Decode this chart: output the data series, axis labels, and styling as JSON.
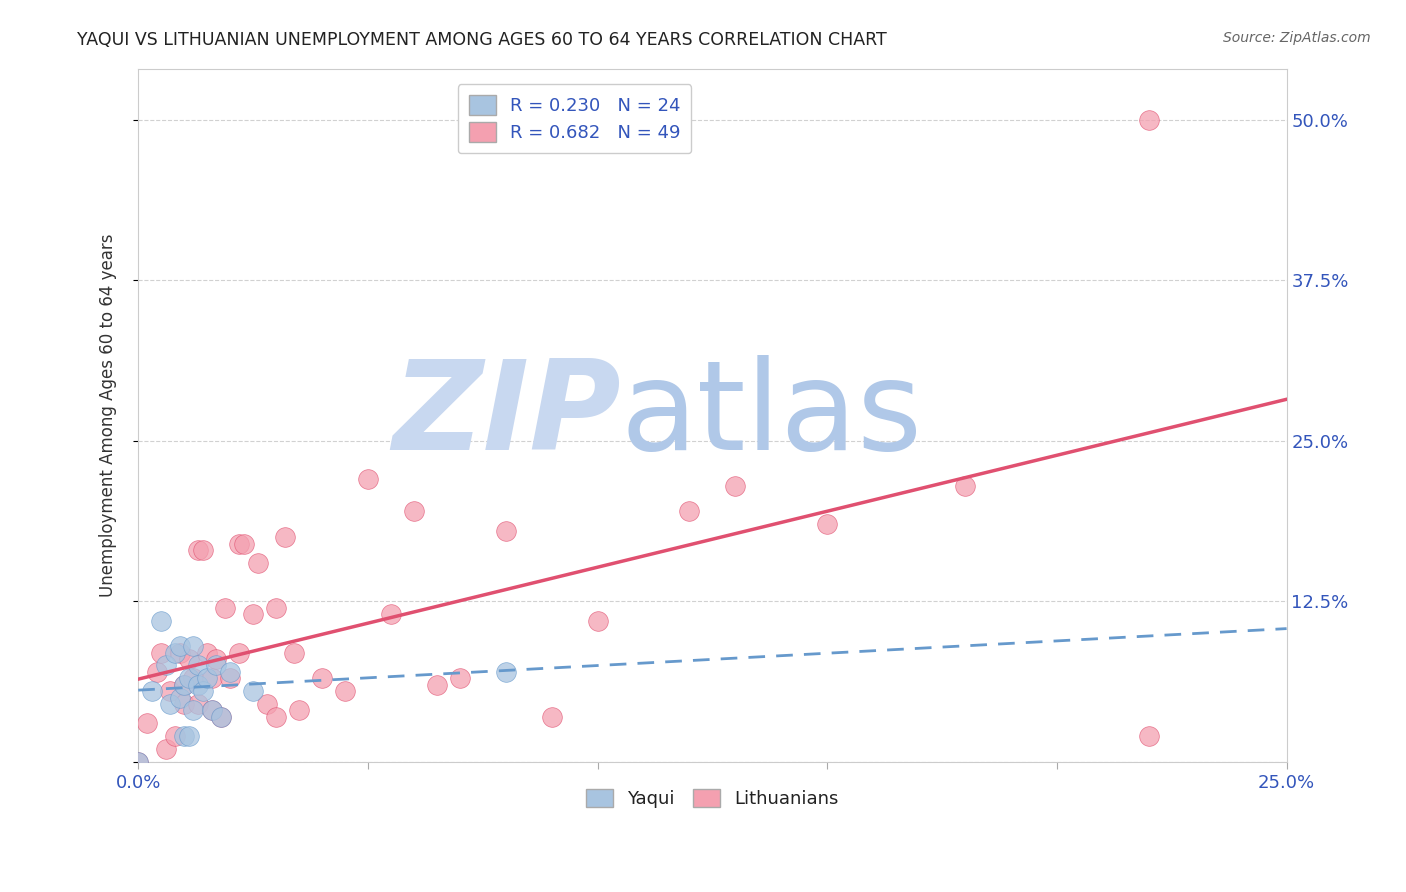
{
  "title": "YAQUI VS LITHUANIAN UNEMPLOYMENT AMONG AGES 60 TO 64 YEARS CORRELATION CHART",
  "source": "Source: ZipAtlas.com",
  "xlabel": "",
  "ylabel": "Unemployment Among Ages 60 to 64 years",
  "xlim": [
    0.0,
    0.25
  ],
  "ylim": [
    0.0,
    0.54
  ],
  "xticks": [
    0.0,
    0.05,
    0.1,
    0.15,
    0.2,
    0.25
  ],
  "yticks": [
    0.0,
    0.125,
    0.25,
    0.375,
    0.5
  ],
  "ytick_labels": [
    "",
    "12.5%",
    "25.0%",
    "37.5%",
    "50.0%"
  ],
  "xtick_labels": [
    "0.0%",
    "",
    "",
    "",
    "",
    "25.0%"
  ],
  "yaqui_R": 0.23,
  "yaqui_N": 24,
  "lith_R": 0.682,
  "lith_N": 49,
  "yaqui_color": "#a8c4e0",
  "lith_color": "#f4a0b0",
  "yaqui_line_color": "#6699cc",
  "lith_line_color": "#e05070",
  "watermark_zip": "ZIP",
  "watermark_atlas": "atlas",
  "watermark_color_zip": "#c8d8f0",
  "watermark_color_atlas": "#b0c8e8",
  "yaqui_x": [
    0.0,
    0.003,
    0.005,
    0.006,
    0.007,
    0.008,
    0.009,
    0.009,
    0.01,
    0.01,
    0.011,
    0.011,
    0.012,
    0.012,
    0.013,
    0.013,
    0.014,
    0.015,
    0.016,
    0.017,
    0.018,
    0.02,
    0.025,
    0.08
  ],
  "yaqui_y": [
    0.0,
    0.055,
    0.11,
    0.075,
    0.045,
    0.085,
    0.05,
    0.09,
    0.06,
    0.02,
    0.065,
    0.02,
    0.04,
    0.09,
    0.075,
    0.06,
    0.055,
    0.065,
    0.04,
    0.075,
    0.035,
    0.07,
    0.055,
    0.07
  ],
  "lith_x": [
    0.0,
    0.002,
    0.004,
    0.005,
    0.006,
    0.007,
    0.008,
    0.009,
    0.01,
    0.01,
    0.011,
    0.012,
    0.013,
    0.013,
    0.014,
    0.015,
    0.016,
    0.016,
    0.017,
    0.018,
    0.019,
    0.02,
    0.022,
    0.022,
    0.023,
    0.025,
    0.026,
    0.028,
    0.03,
    0.03,
    0.032,
    0.034,
    0.035,
    0.04,
    0.045,
    0.05,
    0.055,
    0.06,
    0.065,
    0.07,
    0.08,
    0.09,
    0.1,
    0.12,
    0.13,
    0.15,
    0.18,
    0.22,
    0.22
  ],
  "lith_y": [
    0.0,
    0.03,
    0.07,
    0.085,
    0.01,
    0.055,
    0.02,
    0.085,
    0.06,
    0.045,
    0.08,
    0.065,
    0.045,
    0.165,
    0.165,
    0.085,
    0.065,
    0.04,
    0.08,
    0.035,
    0.12,
    0.065,
    0.085,
    0.17,
    0.17,
    0.115,
    0.155,
    0.045,
    0.035,
    0.12,
    0.175,
    0.085,
    0.04,
    0.065,
    0.055,
    0.22,
    0.115,
    0.195,
    0.06,
    0.065,
    0.18,
    0.035,
    0.11,
    0.195,
    0.215,
    0.185,
    0.215,
    0.02,
    0.5
  ]
}
